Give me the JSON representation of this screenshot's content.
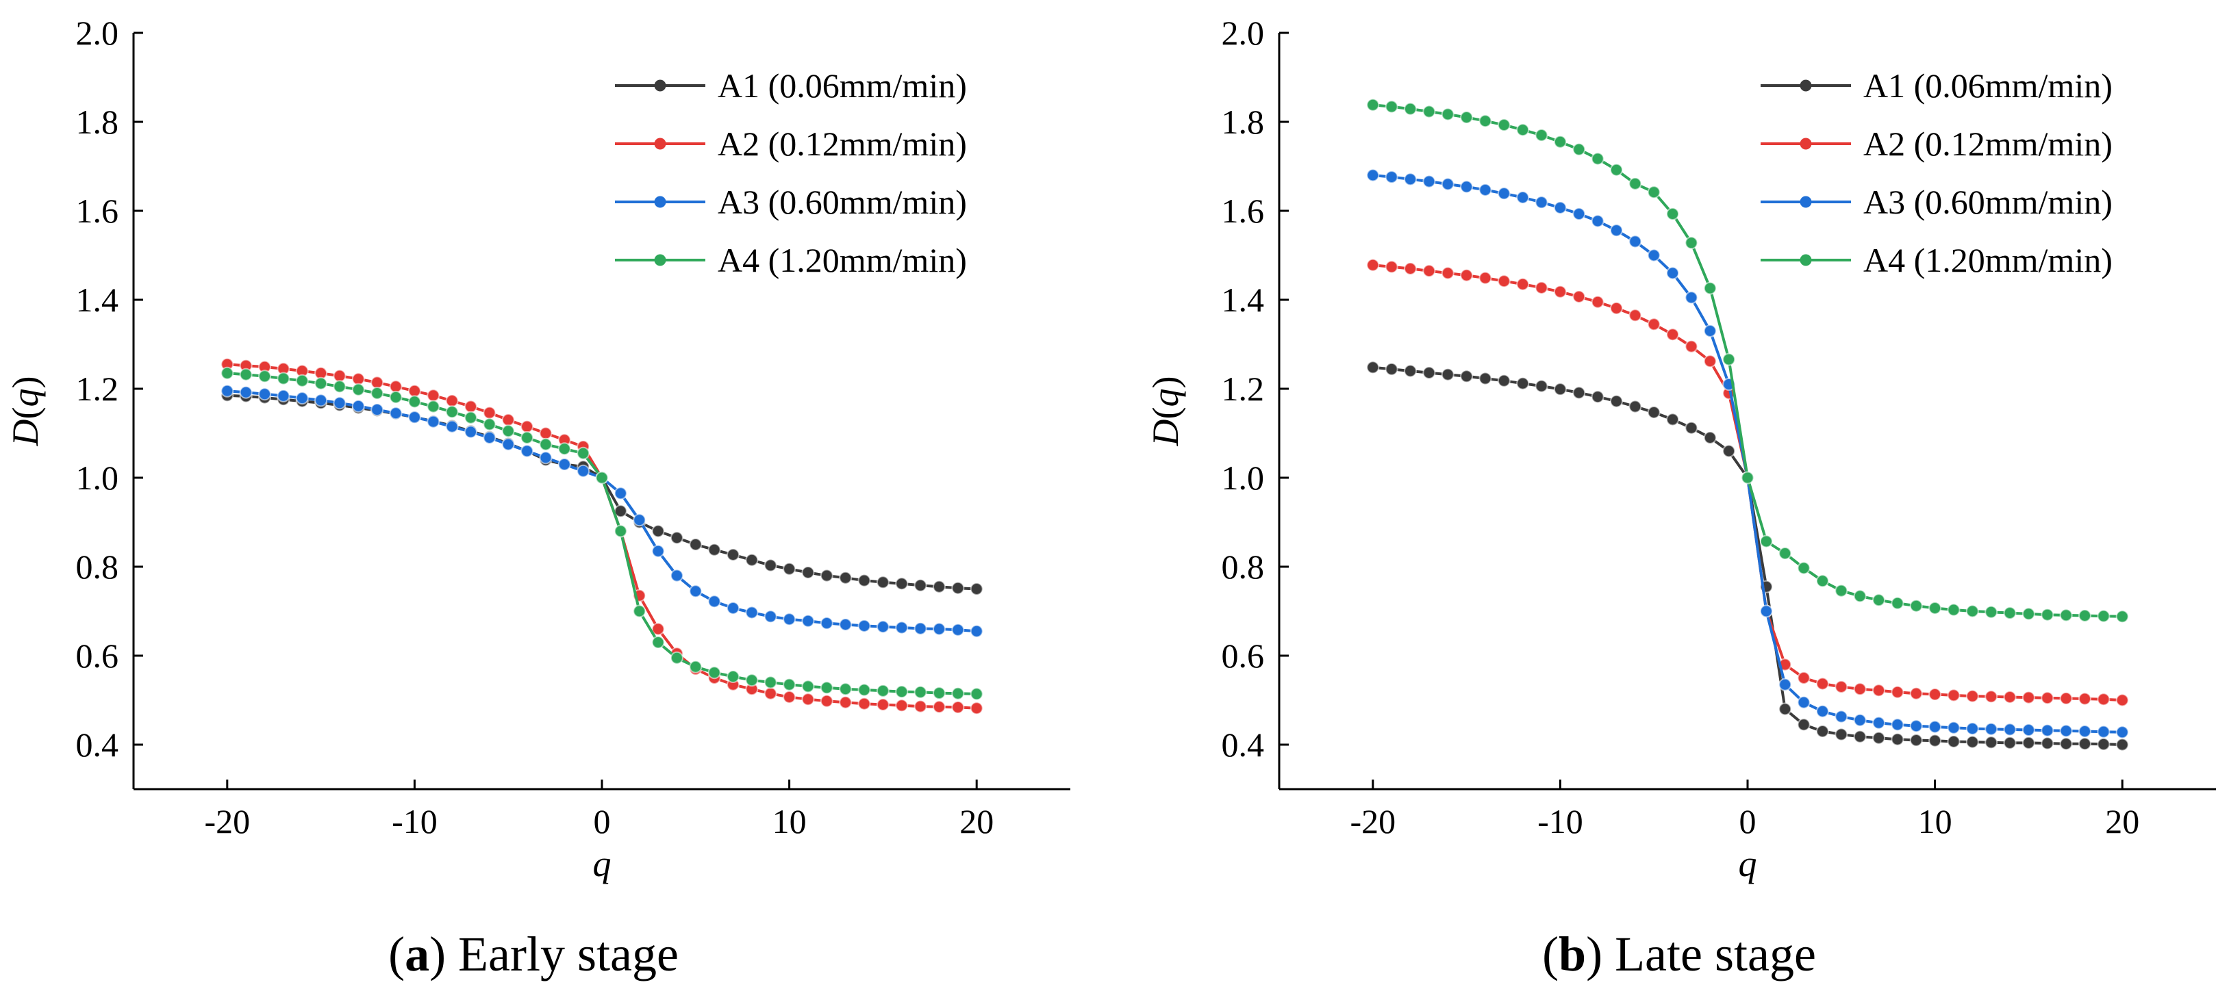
{
  "colors": {
    "A1": "#3b3b3b",
    "A2": "#e53935",
    "A3": "#1f6fd6",
    "A4": "#2fa85a"
  },
  "chart_data": [
    {
      "type": "line",
      "caption_letter": "a",
      "caption_text": "Early stage",
      "xlabel": "q",
      "ylabel_prefix": "D(",
      "ylabel_var": "q",
      "ylabel_suffix": ")",
      "xlim": [
        -25,
        25
      ],
      "ylim": [
        0.3,
        2.0
      ],
      "xticks": [
        -20,
        -10,
        0,
        10,
        20
      ],
      "xtick_labels": [
        "-20",
        "-10",
        "0",
        "10",
        "20"
      ],
      "yticks": [
        0.4,
        0.6,
        0.8,
        1.0,
        1.2,
        1.4,
        1.6,
        1.8,
        2.0
      ],
      "ytick_labels": [
        "0.4",
        "0.6",
        "0.8",
        "1.0",
        "1.2",
        "1.4",
        "1.6",
        "1.8",
        "2.0"
      ],
      "legend_position": "top-right",
      "x": [
        -20,
        -19,
        -18,
        -17,
        -16,
        -15,
        -14,
        -13,
        -12,
        -11,
        -10,
        -9,
        -8,
        -7,
        -6,
        -5,
        -4,
        -3,
        -2,
        -1,
        0,
        1,
        2,
        3,
        4,
        5,
        6,
        7,
        8,
        9,
        10,
        11,
        12,
        13,
        14,
        15,
        16,
        17,
        18,
        19,
        20
      ],
      "series": [
        {
          "key": "A1",
          "name": "A1 (0.06mm/min)",
          "values": [
            1.185,
            1.183,
            1.18,
            1.176,
            1.172,
            1.168,
            1.163,
            1.157,
            1.151,
            1.144,
            1.136,
            1.127,
            1.117,
            1.105,
            1.092,
            1.077,
            1.06,
            1.04,
            1.03,
            1.025,
            1.0,
            0.925,
            0.9,
            0.88,
            0.865,
            0.85,
            0.838,
            0.827,
            0.815,
            0.803,
            0.795,
            0.787,
            0.78,
            0.775,
            0.769,
            0.765,
            0.762,
            0.758,
            0.755,
            0.752,
            0.75
          ]
        },
        {
          "key": "A2",
          "name": "A2 (0.12mm/min)",
          "values": [
            1.255,
            1.252,
            1.249,
            1.245,
            1.24,
            1.235,
            1.229,
            1.222,
            1.214,
            1.205,
            1.195,
            1.185,
            1.173,
            1.16,
            1.146,
            1.13,
            1.115,
            1.1,
            1.085,
            1.07,
            1.0,
            0.88,
            0.735,
            0.66,
            0.605,
            0.57,
            0.55,
            0.535,
            0.525,
            0.515,
            0.507,
            0.502,
            0.498,
            0.495,
            0.492,
            0.49,
            0.488,
            0.486,
            0.485,
            0.484,
            0.482
          ]
        },
        {
          "key": "A3",
          "name": "A3 (0.60mm/min)",
          "values": [
            1.195,
            1.192,
            1.188,
            1.184,
            1.179,
            1.174,
            1.168,
            1.161,
            1.153,
            1.145,
            1.136,
            1.126,
            1.115,
            1.103,
            1.09,
            1.075,
            1.06,
            1.045,
            1.03,
            1.015,
            1.0,
            0.965,
            0.905,
            0.835,
            0.78,
            0.745,
            0.722,
            0.707,
            0.697,
            0.688,
            0.682,
            0.678,
            0.673,
            0.67,
            0.667,
            0.665,
            0.663,
            0.661,
            0.66,
            0.658,
            0.655
          ]
        },
        {
          "key": "A4",
          "name": "A4 (1.20mm/min)",
          "values": [
            1.235,
            1.232,
            1.228,
            1.223,
            1.218,
            1.212,
            1.205,
            1.198,
            1.19,
            1.181,
            1.171,
            1.16,
            1.148,
            1.135,
            1.12,
            1.105,
            1.09,
            1.075,
            1.065,
            1.055,
            1.0,
            0.88,
            0.7,
            0.63,
            0.595,
            0.575,
            0.562,
            0.553,
            0.545,
            0.54,
            0.535,
            0.531,
            0.528,
            0.525,
            0.523,
            0.521,
            0.519,
            0.518,
            0.516,
            0.515,
            0.514
          ]
        }
      ]
    },
    {
      "type": "line",
      "caption_letter": "b",
      "caption_text": "Late stage",
      "xlabel": "q",
      "ylabel_prefix": "D(",
      "ylabel_var": "q",
      "ylabel_suffix": ")",
      "xlim": [
        -25,
        25
      ],
      "ylim": [
        0.3,
        2.0
      ],
      "xticks": [
        -20,
        -10,
        0,
        10,
        20
      ],
      "xtick_labels": [
        "-20",
        "-10",
        "0",
        "10",
        "20"
      ],
      "yticks": [
        0.4,
        0.6,
        0.8,
        1.0,
        1.2,
        1.4,
        1.6,
        1.8,
        2.0
      ],
      "ytick_labels": [
        "0.4",
        "0.6",
        "0.8",
        "1.0",
        "1.2",
        "1.4",
        "1.6",
        "1.8",
        "2.0"
      ],
      "legend_position": "top-right",
      "x": [
        -20,
        -19,
        -18,
        -17,
        -16,
        -15,
        -14,
        -13,
        -12,
        -11,
        -10,
        -9,
        -8,
        -7,
        -6,
        -5,
        -4,
        -3,
        -2,
        -1,
        0,
        1,
        2,
        3,
        4,
        5,
        6,
        7,
        8,
        9,
        10,
        11,
        12,
        13,
        14,
        15,
        16,
        17,
        18,
        19,
        20
      ],
      "series": [
        {
          "key": "A1",
          "name": "A1 (0.06mm/min)",
          "values": [
            1.248,
            1.244,
            1.24,
            1.236,
            1.232,
            1.228,
            1.223,
            1.218,
            1.212,
            1.206,
            1.199,
            1.191,
            1.182,
            1.172,
            1.16,
            1.147,
            1.131,
            1.112,
            1.09,
            1.06,
            1.0,
            0.755,
            0.48,
            0.445,
            0.43,
            0.423,
            0.418,
            0.415,
            0.412,
            0.41,
            0.409,
            0.407,
            0.406,
            0.405,
            0.404,
            0.404,
            0.403,
            0.402,
            0.402,
            0.401,
            0.4
          ]
        },
        {
          "key": "A2",
          "name": "A2 (0.12mm/min)",
          "values": [
            1.478,
            1.474,
            1.47,
            1.465,
            1.46,
            1.455,
            1.449,
            1.442,
            1.435,
            1.427,
            1.418,
            1.407,
            1.395,
            1.381,
            1.365,
            1.345,
            1.322,
            1.295,
            1.262,
            1.19,
            1.0,
            0.7,
            0.58,
            0.55,
            0.537,
            0.53,
            0.525,
            0.522,
            0.518,
            0.515,
            0.513,
            0.511,
            0.509,
            0.508,
            0.507,
            0.506,
            0.505,
            0.504,
            0.503,
            0.502,
            0.5
          ]
        },
        {
          "key": "A3",
          "name": "A3 (0.60mm/min)",
          "values": [
            1.68,
            1.676,
            1.671,
            1.666,
            1.66,
            1.654,
            1.647,
            1.639,
            1.63,
            1.619,
            1.607,
            1.593,
            1.577,
            1.556,
            1.531,
            1.5,
            1.46,
            1.405,
            1.33,
            1.21,
            1.0,
            0.7,
            0.535,
            0.495,
            0.475,
            0.463,
            0.455,
            0.449,
            0.445,
            0.442,
            0.44,
            0.438,
            0.436,
            0.435,
            0.434,
            0.433,
            0.432,
            0.431,
            0.43,
            0.429,
            0.428
          ]
        },
        {
          "key": "A4",
          "name": "A4 (1.20mm/min)",
          "values": [
            1.838,
            1.834,
            1.829,
            1.823,
            1.817,
            1.81,
            1.802,
            1.793,
            1.782,
            1.77,
            1.755,
            1.738,
            1.717,
            1.692,
            1.661,
            1.642,
            1.593,
            1.528,
            1.426,
            1.266,
            1.0,
            0.857,
            0.83,
            0.797,
            0.768,
            0.746,
            0.734,
            0.725,
            0.718,
            0.712,
            0.707,
            0.703,
            0.7,
            0.698,
            0.696,
            0.694,
            0.692,
            0.691,
            0.69,
            0.689,
            0.688
          ]
        }
      ]
    }
  ]
}
